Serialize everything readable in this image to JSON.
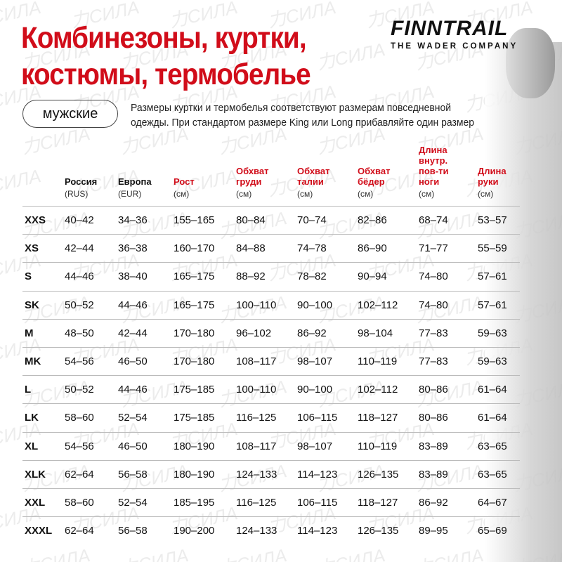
{
  "watermark": "力СИЛА",
  "title": [
    "Комбинезоны, куртки,",
    "костюмы, термобелье"
  ],
  "brand": {
    "name": "FINNTRAIL",
    "tagline": "THE WADER COMPANY"
  },
  "category": "мужские",
  "note": [
    "Размеры куртки и термобелья соответствуют размерам повседневной",
    "одежды. При стандартом размере King или Long прибавляйте один размер"
  ],
  "colors": {
    "accent": "#d10d1a"
  },
  "columns": [
    {
      "label": [
        "Россия"
      ],
      "unit": "(RUS)",
      "red": false
    },
    {
      "label": [
        "Европа"
      ],
      "unit": "(EUR)",
      "red": false
    },
    {
      "label": [
        "Рост"
      ],
      "unit": "(см)",
      "red": true
    },
    {
      "label": [
        "Обхват",
        "груди"
      ],
      "unit": "(см)",
      "red": true
    },
    {
      "label": [
        "Обхват",
        "талии"
      ],
      "unit": "(см)",
      "red": true
    },
    {
      "label": [
        "Обхват",
        "бёдер"
      ],
      "unit": "(см)",
      "red": true
    },
    {
      "label": [
        "Длина",
        "внутр.",
        "пов-ти",
        "ноги"
      ],
      "unit": "(см)",
      "red": true
    },
    {
      "label": [
        "Длина",
        "руки"
      ],
      "unit": "(см)",
      "red": true
    }
  ],
  "rows": [
    [
      "XXS",
      "40–42",
      "34–36",
      "155–165",
      "80–84",
      "70–74",
      "82–86",
      "68–74",
      "53–57"
    ],
    [
      "XS",
      "42–44",
      "36–38",
      "160–170",
      "84–88",
      "74–78",
      "86–90",
      "71–77",
      "55–59"
    ],
    [
      "S",
      "44–46",
      "38–40",
      "165–175",
      "88–92",
      "78–82",
      "90–94",
      "74–80",
      "57–61"
    ],
    [
      "SK",
      "50–52",
      "44–46",
      "165–175",
      "100–110",
      "90–100",
      "102–112",
      "74–80",
      "57–61"
    ],
    [
      "M",
      "48–50",
      "42–44",
      "170–180",
      "96–102",
      "86–92",
      "98–104",
      "77–83",
      "59–63"
    ],
    [
      "MK",
      "54–56",
      "46–50",
      "170–180",
      "108–117",
      "98–107",
      "110–119",
      "77–83",
      "59–63"
    ],
    [
      "L",
      "50–52",
      "44–46",
      "175–185",
      "100–110",
      "90–100",
      "102–112",
      "80–86",
      "61–64"
    ],
    [
      "LK",
      "58–60",
      "52–54",
      "175–185",
      "116–125",
      "106–115",
      "118–127",
      "80–86",
      "61–64"
    ],
    [
      "XL",
      "54–56",
      "46–50",
      "180–190",
      "108–117",
      "98–107",
      "110–119",
      "83–89",
      "63–65"
    ],
    [
      "XLK",
      "62–64",
      "56–58",
      "180–190",
      "124–133",
      "114–123",
      "126–135",
      "83–89",
      "63–65"
    ],
    [
      "XXL",
      "58–60",
      "52–54",
      "185–195",
      "116–125",
      "106–115",
      "118–127",
      "86–92",
      "64–67"
    ],
    [
      "XXXL",
      "62–64",
      "56–58",
      "190–200",
      "124–133",
      "114–123",
      "126–135",
      "89–95",
      "65–69"
    ]
  ]
}
